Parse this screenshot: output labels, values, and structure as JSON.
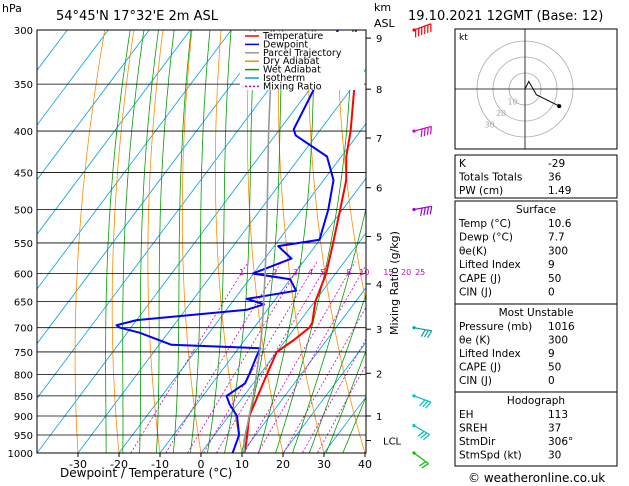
{
  "header": {
    "location": "54°45'N  17°32'E  2m  ASL",
    "datetime": "19.10.2021  12GMT  (Base: 12)",
    "hpa_label": "hPa",
    "km_label": "km",
    "asl_label": "ASL"
  },
  "credit": "© weatheronline.co.uk",
  "chart_data": {
    "type": "skew-t",
    "title": "54°45'N  17°32'E  2m  ASL",
    "xlabel": "Dewpoint / Temperature (°C)",
    "ylabel": "hPa",
    "right_axis_label": "Mixing Ratio (g/kg)",
    "x_ticks": [
      -30,
      -20,
      -10,
      0,
      10,
      20,
      30,
      40
    ],
    "xlim": [
      -40,
      40
    ],
    "pressure_levels": [
      300,
      350,
      400,
      450,
      500,
      550,
      600,
      650,
      700,
      750,
      800,
      850,
      900,
      950,
      1000
    ],
    "ylim": [
      1000,
      300
    ],
    "km_ticks": [
      {
        "km": "1",
        "p": 900
      },
      {
        "km": "2",
        "p": 797
      },
      {
        "km": "3",
        "p": 703
      },
      {
        "km": "4",
        "p": 618
      },
      {
        "km": "5",
        "p": 540
      },
      {
        "km": "6",
        "p": 470
      },
      {
        "km": "7",
        "p": 408
      },
      {
        "km": "8",
        "p": 355
      },
      {
        "km": "9",
        "p": 307
      }
    ],
    "lcl": {
      "label": "LCL",
      "p": 965
    },
    "mixing_ratio_labels": [
      "1",
      "2",
      "3",
      "4",
      "5",
      "8",
      "10",
      "15",
      "20",
      "25"
    ],
    "mixing_ratio_label_p": 597,
    "legend": [
      {
        "label": "Temperature",
        "color": "#ff0000"
      },
      {
        "label": "Dewpoint",
        "color": "#0000ff"
      },
      {
        "label": "Parcel Trajectory",
        "color": "#999999"
      },
      {
        "label": "Dry Adiabat",
        "color": "#ff8c00"
      },
      {
        "label": "Wet Adiabat",
        "color": "#00a000"
      },
      {
        "label": "Isotherm",
        "color": "#00a0e0"
      },
      {
        "label": "Mixing Ratio",
        "color": "#cc00cc"
      }
    ],
    "series": [
      {
        "name": "Temperature",
        "color": "#ff0000",
        "points": [
          [
            1000,
            10.6
          ],
          [
            980,
            9.6
          ],
          [
            950,
            8.0
          ],
          [
            925,
            6.5
          ],
          [
            900,
            5.0
          ],
          [
            850,
            3.4
          ],
          [
            800,
            1.7
          ],
          [
            750,
            0.0
          ],
          [
            725,
            2.0
          ],
          [
            700,
            3.5
          ],
          [
            690,
            3.3
          ],
          [
            650,
            0.2
          ],
          [
            600,
            -2.3
          ],
          [
            550,
            -6.2
          ],
          [
            500,
            -10.6
          ],
          [
            460,
            -14.5
          ],
          [
            430,
            -18.8
          ],
          [
            400,
            -22.4
          ],
          [
            350,
            -30.0
          ],
          [
            320,
            -35.8
          ],
          [
            300,
            -39.6
          ]
        ]
      },
      {
        "name": "Dewpoint",
        "color": "#0000ff",
        "points": [
          [
            1000,
            7.7
          ],
          [
            950,
            6.0
          ],
          [
            900,
            2.0
          ],
          [
            870,
            -2.0
          ],
          [
            850,
            -4.2
          ],
          [
            820,
            -2.0
          ],
          [
            800,
            -2.6
          ],
          [
            760,
            -4.1
          ],
          [
            742,
            -4.7
          ],
          [
            735,
            -27.0
          ],
          [
            710,
            -37.0
          ],
          [
            700,
            -42.7
          ],
          [
            695,
            -44.0
          ],
          [
            685,
            -40.0
          ],
          [
            665,
            -15.0
          ],
          [
            655,
            -11.8
          ],
          [
            645,
            -17.0
          ],
          [
            630,
            -6.5
          ],
          [
            610,
            -10.0
          ],
          [
            600,
            -20.2
          ],
          [
            575,
            -13.5
          ],
          [
            555,
            -19.0
          ],
          [
            545,
            -10.1
          ],
          [
            500,
            -13.5
          ],
          [
            460,
            -17.6
          ],
          [
            430,
            -23.5
          ],
          [
            405,
            -35.0
          ],
          [
            398,
            -36.6
          ],
          [
            350,
            -39.3
          ],
          [
            300,
            -44.0
          ]
        ]
      },
      {
        "name": "Parcel Trajectory",
        "color": "#999999",
        "points": [
          [
            1000,
            10.6
          ],
          [
            965,
            8.2
          ],
          [
            900,
            5.0
          ],
          [
            850,
            2.3
          ],
          [
            800,
            -0.8
          ],
          [
            750,
            -4.2
          ],
          [
            700,
            -8.0
          ],
          [
            650,
            -12.4
          ],
          [
            600,
            -17.2
          ],
          [
            550,
            -22.5
          ],
          [
            500,
            -28.4
          ],
          [
            450,
            -35.0
          ],
          [
            400,
            -42.4
          ],
          [
            350,
            -50.5
          ],
          [
            300,
            -59.6
          ]
        ]
      }
    ],
    "wind_barbs": [
      {
        "p": 300,
        "dir": 250,
        "speed_kt": 55,
        "color": "#ff0000"
      },
      {
        "p": 400,
        "dir": 255,
        "speed_kt": 40,
        "color": "#cc00cc"
      },
      {
        "p": 500,
        "dir": 260,
        "speed_kt": 35,
        "color": "#9900cc"
      },
      {
        "p": 700,
        "dir": 280,
        "speed_kt": 30,
        "color": "#00a0a0"
      },
      {
        "p": 850,
        "dir": 290,
        "speed_kt": 25,
        "color": "#00c0c0"
      },
      {
        "p": 925,
        "dir": 300,
        "speed_kt": 25,
        "color": "#00c0c0"
      },
      {
        "p": 1000,
        "dir": 306,
        "speed_kt": 20,
        "color": "#00c000"
      }
    ],
    "hodograph": {
      "unit_label": "kt",
      "ring_labels": [
        "10",
        "20",
        "30"
      ],
      "points_kt": [
        [
          0,
          0
        ],
        [
          2,
          4
        ],
        [
          6,
          -3
        ],
        [
          12,
          -6
        ],
        [
          18,
          -9
        ]
      ]
    }
  },
  "indices": {
    "rows": [
      {
        "label": "K",
        "value": "-29"
      },
      {
        "label": "Totals Totals",
        "value": "36"
      },
      {
        "label": "PW (cm)",
        "value": "1.49"
      }
    ]
  },
  "surface": {
    "title": "Surface",
    "rows": [
      {
        "label": "Temp (°C)",
        "value": "10.6"
      },
      {
        "label": "Dewp (°C)",
        "value": "7.7"
      },
      {
        "label": "θe(K)",
        "value": "300"
      },
      {
        "label": "Lifted Index",
        "value": "9"
      },
      {
        "label": "CAPE (J)",
        "value": "50"
      },
      {
        "label": "CIN (J)",
        "value": "0"
      }
    ]
  },
  "most_unstable": {
    "title": "Most Unstable",
    "rows": [
      {
        "label": "Pressure (mb)",
        "value": "1016"
      },
      {
        "label": "θe (K)",
        "value": "300"
      },
      {
        "label": "Lifted Index",
        "value": "9"
      },
      {
        "label": "CAPE (J)",
        "value": "50"
      },
      {
        "label": "CIN (J)",
        "value": "0"
      }
    ]
  },
  "hodograph_table": {
    "title": "Hodograph",
    "rows": [
      {
        "label": "EH",
        "value": "113"
      },
      {
        "label": "SREH",
        "value": "37"
      },
      {
        "label": "StmDir",
        "value": "306°"
      },
      {
        "label": "StmSpd (kt)",
        "value": "30"
      }
    ]
  }
}
